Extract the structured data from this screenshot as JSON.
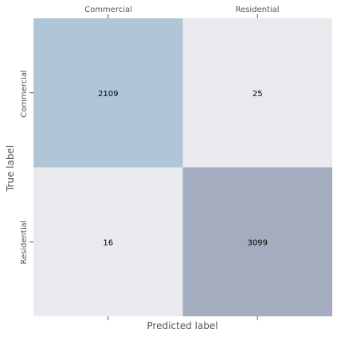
{
  "chart_data": {
    "type": "heatmap",
    "title": "",
    "x_categories": [
      "Commercial",
      "Residential"
    ],
    "y_categories": [
      "Commercial",
      "Residential"
    ],
    "values": [
      [
        2109,
        25
      ],
      [
        16,
        3099
      ]
    ],
    "xlabel": "Predicted label",
    "ylabel": "True label",
    "x_tick_labels_position": "top",
    "colors": {
      "high": "#a3adbf",
      "mid": "#b0c6d7",
      "low": "#e9eaed",
      "tick": "#555555"
    },
    "grid": false,
    "legend": "none"
  }
}
